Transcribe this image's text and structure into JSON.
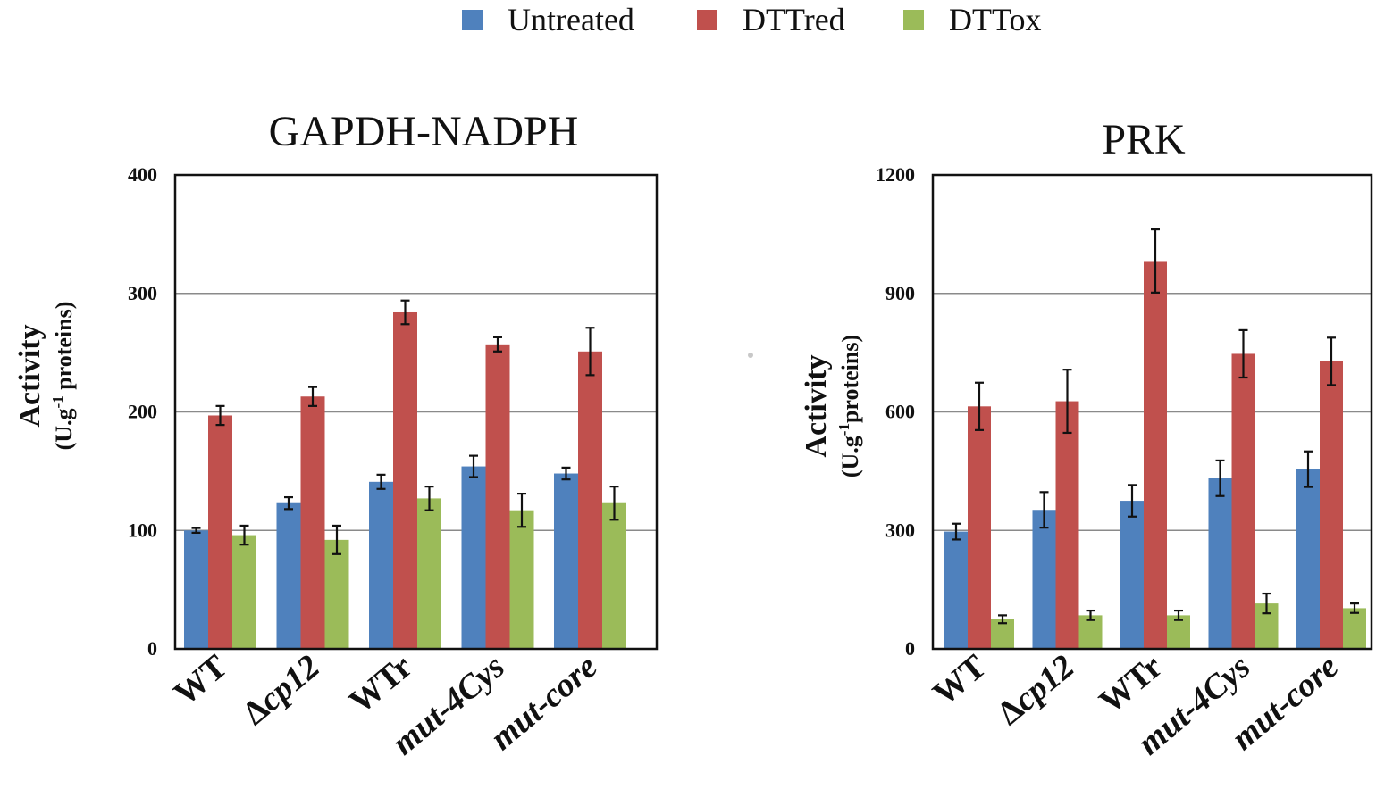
{
  "legend": [
    {
      "label": "Untreated",
      "color": "#4f81bd"
    },
    {
      "label": "DTTred",
      "color": "#c0504d"
    },
    {
      "label": "DTTox",
      "color": "#9bbb59"
    }
  ],
  "chart_data": [
    {
      "type": "bar",
      "title": "GAPDH-NADPH",
      "ylabel": "Activity",
      "ylabel_units": "(U.g-1 proteins)",
      "ylabel_units_pre": "(U.g",
      "ylabel_units_sup": "-1",
      "ylabel_units_post": " proteins)",
      "ylim": [
        0,
        400
      ],
      "yticks": [
        0,
        100,
        200,
        300,
        400
      ],
      "grid": true,
      "categories": [
        {
          "text": "WT",
          "prefix": "",
          "body": "WT",
          "italic": false
        },
        {
          "text": "Δcp12",
          "prefix": "Δ",
          "body": "cp12",
          "italic": true
        },
        {
          "text": "WTr",
          "prefix": "",
          "body": "WTr",
          "italic": false
        },
        {
          "text": "mut-4Cys",
          "prefix": "",
          "body": "mut-4Cys",
          "italic": true
        },
        {
          "text": "mut-core",
          "prefix": "",
          "body": "mut-core",
          "italic": true
        }
      ],
      "series": [
        {
          "name": "Untreated",
          "values": [
            100,
            123,
            141,
            154,
            148
          ],
          "errors": [
            2,
            5,
            6,
            9,
            5
          ]
        },
        {
          "name": "DTTred",
          "values": [
            197,
            213,
            284,
            257,
            251
          ],
          "errors": [
            8,
            8,
            10,
            6,
            20
          ]
        },
        {
          "name": "DTTox",
          "values": [
            96,
            92,
            127,
            117,
            123
          ],
          "errors": [
            8,
            12,
            10,
            14,
            14
          ]
        }
      ]
    },
    {
      "type": "bar",
      "title": "PRK",
      "ylabel": "Activity",
      "ylabel_units": "(U.g-1proteins)",
      "ylabel_units_pre": "(U.g",
      "ylabel_units_sup": "-1",
      "ylabel_units_post": "proteins)",
      "ylim": [
        0,
        1200
      ],
      "yticks": [
        0,
        300,
        600,
        900,
        1200
      ],
      "grid": true,
      "categories": [
        {
          "text": "WT",
          "prefix": "",
          "body": "WT",
          "italic": false
        },
        {
          "text": "Δcp12",
          "prefix": "Δ",
          "body": "cp12",
          "italic": true
        },
        {
          "text": "WTr",
          "prefix": "",
          "body": "WTr",
          "italic": false
        },
        {
          "text": "mut-4Cys",
          "prefix": "",
          "body": "mut-4Cys",
          "italic": true
        },
        {
          "text": "mut-core",
          "prefix": "",
          "body": "mut-core",
          "italic": true
        }
      ],
      "series": [
        {
          "name": "Untreated",
          "values": [
            297,
            352,
            375,
            432,
            455
          ],
          "errors": [
            20,
            45,
            40,
            45,
            45
          ]
        },
        {
          "name": "DTTred",
          "values": [
            614,
            627,
            982,
            747,
            728
          ],
          "errors": [
            60,
            80,
            80,
            60,
            60
          ]
        },
        {
          "name": "DTTox",
          "values": [
            75,
            85,
            85,
            115,
            103
          ],
          "errors": [
            10,
            12,
            12,
            25,
            12
          ]
        }
      ]
    }
  ]
}
